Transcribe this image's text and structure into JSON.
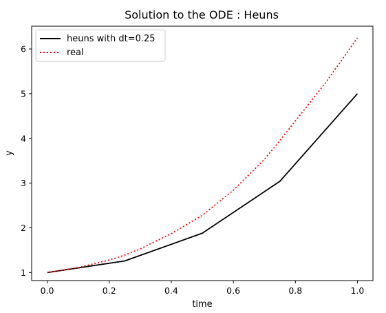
{
  "chart_data": {
    "type": "line",
    "title": "Solution to the ODE : Heuns",
    "xlabel": "time",
    "ylabel": "y",
    "xlim": [
      -0.05,
      1.05
    ],
    "ylim": [
      0.82,
      6.51
    ],
    "xticks": [
      0.0,
      0.2,
      0.4,
      0.6,
      0.8,
      1.0
    ],
    "xtick_labels": [
      "0.0",
      "0.2",
      "0.4",
      "0.6",
      "0.8",
      "1.0"
    ],
    "yticks": [
      1,
      2,
      3,
      4,
      5,
      6
    ],
    "ytick_labels": [
      "1",
      "2",
      "3",
      "4",
      "5",
      "6"
    ],
    "grid": false,
    "legend_position": "top-left",
    "series": [
      {
        "name": "heuns with dt=0.25",
        "color": "#000000",
        "style": "solid",
        "x": [
          0.0,
          0.25,
          0.5,
          0.75,
          1.0
        ],
        "y": [
          1.0,
          1.26,
          1.88,
          3.04,
          5.0
        ]
      },
      {
        "name": "real",
        "color": "#ff0000",
        "style": "dotted",
        "x": [
          0.0,
          0.1,
          0.2,
          0.25,
          0.3,
          0.4,
          0.5,
          0.6,
          0.7,
          0.75,
          0.8,
          0.9,
          1.0
        ],
        "y": [
          1.0,
          1.11,
          1.28,
          1.39,
          1.53,
          1.87,
          2.28,
          2.84,
          3.53,
          3.95,
          4.39,
          5.27,
          6.25
        ]
      }
    ]
  }
}
